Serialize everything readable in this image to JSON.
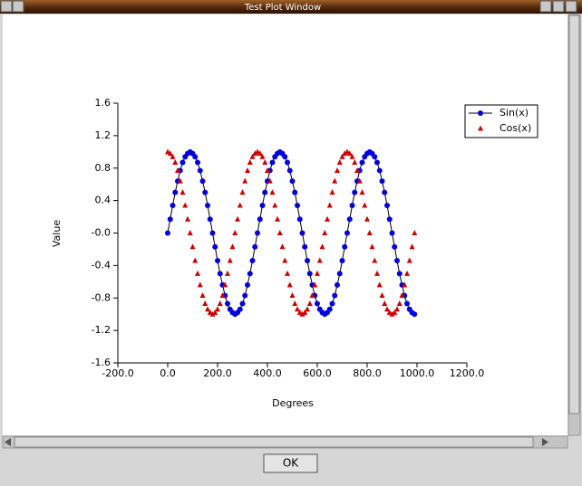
{
  "window": {
    "title": "Test Plot Window"
  },
  "button": {
    "label": "OK"
  },
  "chart_data": {
    "type": "scatter",
    "xlabel": "Degrees",
    "ylabel": "Value",
    "x": [
      0,
      10,
      20,
      30,
      40,
      50,
      60,
      70,
      80,
      90,
      100,
      110,
      120,
      130,
      140,
      150,
      160,
      170,
      180,
      190,
      200,
      210,
      220,
      230,
      240,
      250,
      260,
      270,
      280,
      290,
      300,
      310,
      320,
      330,
      340,
      350,
      360,
      370,
      380,
      390,
      400,
      410,
      420,
      430,
      440,
      450,
      460,
      470,
      480,
      490,
      500,
      510,
      520,
      530,
      540,
      550,
      560,
      570,
      580,
      590,
      600,
      610,
      620,
      630,
      640,
      650,
      660,
      670,
      680,
      690,
      700,
      710,
      720,
      730,
      740,
      750,
      760,
      770,
      780,
      790,
      800,
      810,
      820,
      830,
      840,
      850,
      860,
      870,
      880,
      890,
      900,
      910,
      920,
      930,
      940,
      950,
      960,
      970,
      980,
      990
    ],
    "series": [
      {
        "name": "Sin(x)",
        "color": "#0000dd",
        "marker": "circle",
        "line": true,
        "values": [
          0,
          0.17,
          0.34,
          0.5,
          0.64,
          0.77,
          0.87,
          0.94,
          0.98,
          1,
          0.98,
          0.94,
          0.87,
          0.77,
          0.64,
          0.5,
          0.34,
          0.17,
          0,
          -0.17,
          -0.34,
          -0.5,
          -0.64,
          -0.77,
          -0.87,
          -0.94,
          -0.98,
          -1,
          -0.98,
          -0.94,
          -0.87,
          -0.77,
          -0.64,
          -0.5,
          -0.34,
          -0.17,
          0,
          0.17,
          0.34,
          0.5,
          0.64,
          0.77,
          0.87,
          0.94,
          0.98,
          1,
          0.98,
          0.94,
          0.87,
          0.77,
          0.64,
          0.5,
          0.34,
          0.17,
          0,
          -0.17,
          -0.34,
          -0.5,
          -0.64,
          -0.77,
          -0.87,
          -0.94,
          -0.98,
          -1,
          -0.98,
          -0.94,
          -0.87,
          -0.77,
          -0.64,
          -0.5,
          -0.34,
          -0.17,
          0,
          0.17,
          0.34,
          0.5,
          0.64,
          0.77,
          0.87,
          0.94,
          0.98,
          1,
          0.98,
          0.94,
          0.87,
          0.77,
          0.64,
          0.5,
          0.34,
          0.17,
          0,
          -0.17,
          -0.34,
          -0.5,
          -0.64,
          -0.77,
          -0.87,
          -0.94,
          -0.98,
          -1
        ]
      },
      {
        "name": "Cos(x)",
        "color": "#cc0000",
        "marker": "triangle",
        "line": false,
        "values": [
          1,
          0.98,
          0.94,
          0.87,
          0.77,
          0.64,
          0.5,
          0.34,
          0.17,
          0,
          -0.17,
          -0.34,
          -0.5,
          -0.64,
          -0.77,
          -0.87,
          -0.94,
          -0.98,
          -1,
          -0.98,
          -0.94,
          -0.87,
          -0.77,
          -0.64,
          -0.5,
          -0.34,
          -0.17,
          0,
          0.17,
          0.34,
          0.5,
          0.64,
          0.77,
          0.87,
          0.94,
          0.98,
          1,
          0.98,
          0.94,
          0.87,
          0.77,
          0.64,
          0.5,
          0.34,
          0.17,
          0,
          -0.17,
          -0.34,
          -0.5,
          -0.64,
          -0.77,
          -0.87,
          -0.94,
          -0.98,
          -1,
          -0.98,
          -0.94,
          -0.87,
          -0.77,
          -0.64,
          -0.5,
          -0.34,
          -0.17,
          0,
          0.17,
          0.34,
          0.5,
          0.64,
          0.77,
          0.87,
          0.94,
          0.98,
          1,
          0.98,
          0.94,
          0.87,
          0.77,
          0.64,
          0.5,
          0.34,
          0.17,
          0,
          -0.17,
          -0.34,
          -0.5,
          -0.64,
          -0.77,
          -0.87,
          -0.94,
          -0.98,
          -1,
          -0.98,
          -0.94,
          -0.87,
          -0.77,
          -0.64,
          -0.5,
          -0.34,
          -0.17,
          0
        ]
      }
    ],
    "xlim": [
      -200,
      1200
    ],
    "xticks": [
      {
        "value": -200,
        "label": "-200.0"
      },
      {
        "value": 0,
        "label": "0.0"
      },
      {
        "value": 200,
        "label": "200.0"
      },
      {
        "value": 400,
        "label": "400.0"
      },
      {
        "value": 600,
        "label": "600.0"
      },
      {
        "value": 800,
        "label": "800.0"
      },
      {
        "value": 1000,
        "label": "1000.0"
      },
      {
        "value": 1200,
        "label": "1200.0"
      }
    ],
    "ylim": [
      -1.6,
      1.6
    ],
    "yticks": [
      1.6,
      1.2,
      0.8,
      0.4,
      {
        "value": 0,
        "label": "-0.0"
      },
      -0.4,
      -0.8,
      -1.2,
      -1.6
    ],
    "legend": "upper right",
    "grid": false
  }
}
